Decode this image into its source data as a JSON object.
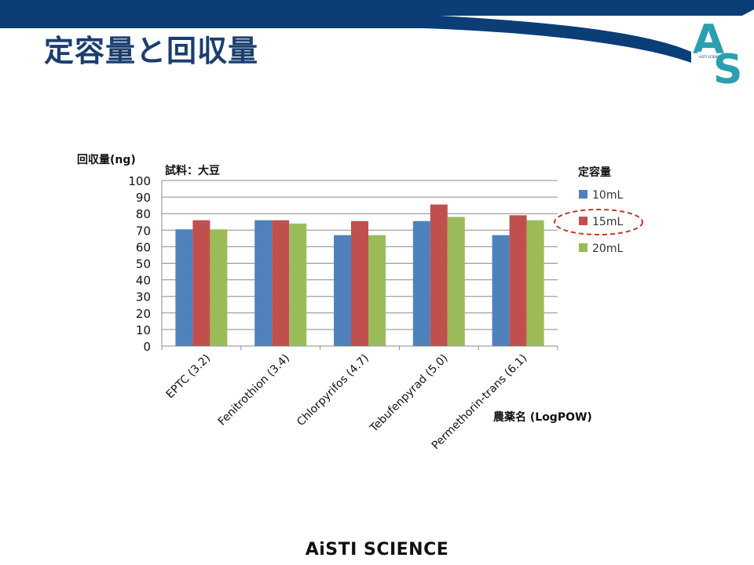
{
  "slide": {
    "title": "定容量と回収量",
    "footer": "AiSTI SCIENCE",
    "logo_letters": [
      "A",
      "S"
    ],
    "logo_small": "AiSTI SCIENCE"
  },
  "colors": {
    "banner": "#0b3d77",
    "title": "#1b3e6e",
    "logo": "#2b9fb0",
    "highlight": "#c0392b"
  },
  "chart_data": {
    "type": "bar",
    "title": "試料：大豆",
    "ylabel": "回収量(ng)",
    "xlabel": "農薬名 (LogPOW)",
    "legend_title": "定容量",
    "legend_position": "right",
    "grid": true,
    "ylim": [
      0,
      100
    ],
    "yticks": [
      0,
      10,
      20,
      30,
      40,
      50,
      60,
      70,
      80,
      90,
      100
    ],
    "categories": [
      "EPTC (3.2)",
      "Fenitrothion (3.4)",
      "Chlorpyrifos (4.7)",
      "Tebufenpyrad (5.0)",
      "Permethorin-trans (6.1)"
    ],
    "series": [
      {
        "name": "10mL",
        "color": "#4f81bd",
        "values": [
          70.5,
          76,
          67,
          75.5,
          67
        ]
      },
      {
        "name": "15mL",
        "color": "#c0504d",
        "values": [
          76,
          76,
          75.5,
          85.5,
          79
        ]
      },
      {
        "name": "20mL",
        "color": "#9bbb59",
        "values": [
          70.5,
          74,
          67,
          78,
          76
        ]
      }
    ],
    "highlighted_series": "15mL"
  }
}
